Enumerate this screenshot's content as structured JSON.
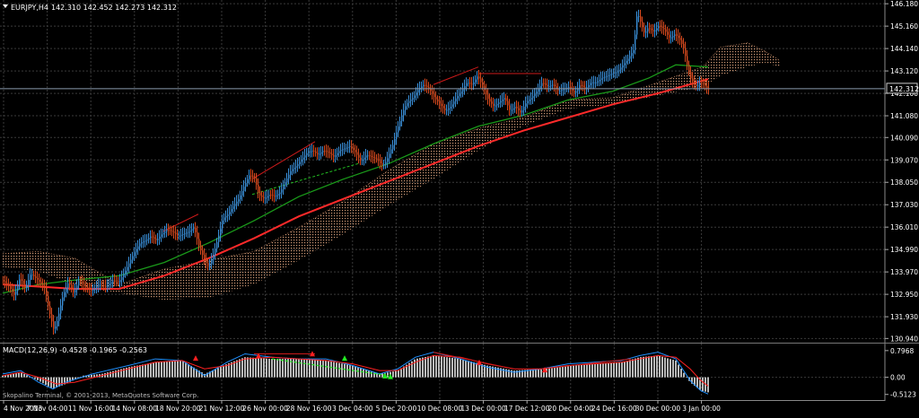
{
  "header": {
    "symbol_label": "EURJPY,H4",
    "ohlc_text": "142.310 142.452 142.273 142.312"
  },
  "copyright": "Skopalino Terminal, © 2001-2013, MetaQuotes Software Corp.",
  "chart_data": {
    "type": "candlestick",
    "symbol": "EURJPY",
    "timeframe": "H4",
    "ohlc": {
      "open": 142.31,
      "high": 142.452,
      "low": 142.273,
      "close": 142.312
    },
    "current_price_label": "142.312",
    "y_ticks": [
      "146.180",
      "145.160",
      "144.140",
      "143.120",
      "142.100",
      "141.080",
      "140.090",
      "139.070",
      "138.050",
      "137.030",
      "136.010",
      "134.990",
      "133.970",
      "132.950",
      "131.930",
      "130.940"
    ],
    "ylim": [
      130.75,
      146.35
    ],
    "x_ticks": [
      "4 Nov 2013",
      "7 Nov 04:00",
      "11 Nov 16:00",
      "14 Nov 08:00",
      "18 Nov 20:00",
      "21 Nov 12:00",
      "26 Nov 00:00",
      "28 Nov 16:00",
      "3 Dec 04:00",
      "5 Dec 20:00",
      "10 Dec 08:00",
      "13 Dec 00:00",
      "17 Dec 12:00",
      "20 Dec 04:00",
      "24 Dec 16:00",
      "30 Dec 00:00",
      "3 Jan 00:00"
    ],
    "price_path": [
      [
        0,
        133.6
      ],
      [
        8,
        133.3
      ],
      [
        14,
        132.9
      ],
      [
        20,
        133.7
      ],
      [
        26,
        133.2
      ],
      [
        32,
        133.9
      ],
      [
        40,
        133.6
      ],
      [
        48,
        133.2
      ],
      [
        52,
        132.3
      ],
      [
        55,
        131.8
      ],
      [
        58,
        131.3
      ],
      [
        62,
        131.8
      ],
      [
        68,
        132.9
      ],
      [
        74,
        133.5
      ],
      [
        80,
        133.0
      ],
      [
        86,
        133.6
      ],
      [
        92,
        133.3
      ],
      [
        100,
        133.1
      ],
      [
        108,
        133.4
      ],
      [
        116,
        133.3
      ],
      [
        124,
        133.6
      ],
      [
        130,
        133.5
      ],
      [
        136,
        133.9
      ],
      [
        142,
        134.4
      ],
      [
        148,
        134.9
      ],
      [
        154,
        135.3
      ],
      [
        160,
        135.4
      ],
      [
        166,
        135.6
      ],
      [
        172,
        135.4
      ],
      [
        178,
        135.7
      ],
      [
        184,
        135.9
      ],
      [
        190,
        135.8
      ],
      [
        196,
        135.6
      ],
      [
        202,
        135.7
      ],
      [
        208,
        135.8
      ],
      [
        214,
        136.0
      ],
      [
        220,
        135.1
      ],
      [
        226,
        134.5
      ],
      [
        230,
        134.2
      ],
      [
        236,
        134.8
      ],
      [
        242,
        135.7
      ],
      [
        246,
        136.4
      ],
      [
        252,
        136.6
      ],
      [
        258,
        137.0
      ],
      [
        264,
        137.3
      ],
      [
        270,
        137.9
      ],
      [
        276,
        138.4
      ],
      [
        282,
        138.2
      ],
      [
        286,
        137.5
      ],
      [
        292,
        137.3
      ],
      [
        298,
        137.5
      ],
      [
        304,
        137.4
      ],
      [
        310,
        137.6
      ],
      [
        316,
        138.1
      ],
      [
        322,
        138.6
      ],
      [
        328,
        138.8
      ],
      [
        334,
        139.1
      ],
      [
        340,
        139.4
      ],
      [
        346,
        139.5
      ],
      [
        352,
        139.3
      ],
      [
        358,
        139.5
      ],
      [
        364,
        139.4
      ],
      [
        370,
        139.2
      ],
      [
        376,
        139.5
      ],
      [
        382,
        139.6
      ],
      [
        388,
        139.7
      ],
      [
        394,
        139.4
      ],
      [
        400,
        139.0
      ],
      [
        406,
        139.3
      ],
      [
        412,
        139.2
      ],
      [
        418,
        139.1
      ],
      [
        424,
        138.8
      ],
      [
        428,
        139.0
      ],
      [
        432,
        139.4
      ],
      [
        436,
        139.8
      ],
      [
        440,
        140.4
      ],
      [
        444,
        140.9
      ],
      [
        448,
        141.4
      ],
      [
        452,
        141.7
      ],
      [
        458,
        141.9
      ],
      [
        464,
        142.3
      ],
      [
        470,
        142.5
      ],
      [
        476,
        142.3
      ],
      [
        482,
        141.9
      ],
      [
        488,
        141.6
      ],
      [
        494,
        141.3
      ],
      [
        500,
        141.5
      ],
      [
        506,
        141.9
      ],
      [
        512,
        142.2
      ],
      [
        518,
        142.6
      ],
      [
        524,
        142.5
      ],
      [
        530,
        142.9
      ],
      [
        536,
        142.4
      ],
      [
        542,
        141.8
      ],
      [
        548,
        141.5
      ],
      [
        554,
        141.7
      ],
      [
        560,
        141.9
      ],
      [
        566,
        141.3
      ],
      [
        572,
        141.5
      ],
      [
        578,
        141.2
      ],
      [
        584,
        141.7
      ],
      [
        590,
        141.9
      ],
      [
        596,
        142.2
      ],
      [
        602,
        142.6
      ],
      [
        608,
        142.4
      ],
      [
        614,
        142.5
      ],
      [
        620,
        142.2
      ],
      [
        626,
        142.3
      ],
      [
        632,
        142.4
      ],
      [
        638,
        142.1
      ],
      [
        644,
        142.5
      ],
      [
        650,
        142.3
      ],
      [
        656,
        142.6
      ],
      [
        662,
        142.6
      ],
      [
        668,
        142.8
      ],
      [
        674,
        142.9
      ],
      [
        680,
        143.0
      ],
      [
        686,
        143.1
      ],
      [
        692,
        143.4
      ],
      [
        698,
        143.7
      ],
      [
        704,
        144.1
      ],
      [
        706,
        145.0
      ],
      [
        708,
        145.8
      ],
      [
        712,
        145.3
      ],
      [
        716,
        144.8
      ],
      [
        720,
        145.1
      ],
      [
        726,
        144.9
      ],
      [
        732,
        145.2
      ],
      [
        738,
        145.0
      ],
      [
        744,
        144.6
      ],
      [
        750,
        144.8
      ],
      [
        756,
        144.5
      ],
      [
        760,
        144.1
      ],
      [
        764,
        143.3
      ],
      [
        768,
        142.7
      ],
      [
        774,
        142.4
      ],
      [
        778,
        142.6
      ],
      [
        782,
        142.5
      ],
      [
        786,
        142.31
      ]
    ],
    "ma_red": [
      [
        0,
        133.4
      ],
      [
        40,
        133.3
      ],
      [
        80,
        133.2
      ],
      [
        130,
        133.2
      ],
      [
        180,
        133.8
      ],
      [
        230,
        134.6
      ],
      [
        280,
        135.5
      ],
      [
        330,
        136.5
      ],
      [
        380,
        137.3
      ],
      [
        430,
        138.1
      ],
      [
        480,
        138.9
      ],
      [
        530,
        139.7
      ],
      [
        580,
        140.4
      ],
      [
        630,
        141.0
      ],
      [
        680,
        141.6
      ],
      [
        730,
        142.1
      ],
      [
        765,
        142.5
      ],
      [
        786,
        142.75
      ]
    ],
    "ma_green": [
      [
        0,
        133.0
      ],
      [
        40,
        133.4
      ],
      [
        80,
        133.6
      ],
      [
        130,
        133.8
      ],
      [
        180,
        134.4
      ],
      [
        230,
        135.3
      ],
      [
        280,
        136.3
      ],
      [
        330,
        137.4
      ],
      [
        380,
        138.2
      ],
      [
        430,
        138.9
      ],
      [
        480,
        139.8
      ],
      [
        530,
        140.6
      ],
      [
        580,
        141.1
      ],
      [
        630,
        141.8
      ],
      [
        680,
        142.2
      ],
      [
        720,
        142.8
      ],
      [
        750,
        143.4
      ],
      [
        786,
        143.3
      ]
    ],
    "cloud_upper": [
      [
        0,
        134.8
      ],
      [
        40,
        134.9
      ],
      [
        80,
        134.6
      ],
      [
        130,
        133.4
      ],
      [
        180,
        134.1
      ],
      [
        230,
        134.5
      ],
      [
        280,
        134.9
      ],
      [
        330,
        136.0
      ],
      [
        380,
        137.2
      ],
      [
        430,
        138.6
      ],
      [
        480,
        139.8
      ],
      [
        530,
        140.5
      ],
      [
        580,
        141.0
      ],
      [
        630,
        141.8
      ],
      [
        680,
        141.9
      ],
      [
        730,
        142.6
      ],
      [
        780,
        143.3
      ],
      [
        800,
        144.2
      ],
      [
        830,
        144.4
      ],
      [
        850,
        144.0
      ],
      [
        866,
        143.6
      ]
    ],
    "cloud_lower": [
      [
        0,
        134.2
      ],
      [
        40,
        134.0
      ],
      [
        80,
        133.4
      ],
      [
        130,
        133.0
      ],
      [
        180,
        132.7
      ],
      [
        230,
        132.8
      ],
      [
        280,
        133.4
      ],
      [
        330,
        134.5
      ],
      [
        380,
        135.7
      ],
      [
        430,
        137.0
      ],
      [
        480,
        138.2
      ],
      [
        530,
        139.5
      ],
      [
        580,
        140.6
      ],
      [
        630,
        141.4
      ],
      [
        680,
        141.6
      ],
      [
        730,
        142.0
      ],
      [
        780,
        142.4
      ],
      [
        800,
        142.9
      ],
      [
        830,
        143.3
      ],
      [
        850,
        143.5
      ],
      [
        866,
        143.3
      ]
    ],
    "trend_lines_red": [
      [
        [
          178,
          135.8
        ],
        [
          218,
          136.6
        ]
      ],
      [
        [
          278,
          138.2
        ],
        [
          348,
          139.9
        ]
      ],
      [
        [
          480,
          142.5
        ],
        [
          530,
          143.3
        ]
      ],
      [
        [
          530,
          143.0
        ],
        [
          600,
          143.0
        ]
      ]
    ],
    "trend_lines_green_dashed": [
      [
        [
          278,
          137.5
        ],
        [
          396,
          138.9
        ]
      ]
    ],
    "macd": {
      "label": "MACD(12,26,9) -0.4528 -0.1965 -0.2563",
      "params": [
        12,
        26,
        9
      ],
      "values": [
        -0.4528,
        -0.1965,
        -0.2563
      ],
      "y_ticks": [
        "0.7968",
        "0.00",
        "-0.5123"
      ],
      "ylim": [
        -0.6,
        0.9
      ],
      "histogram": [
        [
          0,
          0.05
        ],
        [
          20,
          0.15
        ],
        [
          40,
          -0.1
        ],
        [
          56,
          -0.35
        ],
        [
          70,
          -0.2
        ],
        [
          90,
          0.05
        ],
        [
          110,
          0.1
        ],
        [
          140,
          0.3
        ],
        [
          170,
          0.45
        ],
        [
          200,
          0.5
        ],
        [
          225,
          0.1
        ],
        [
          250,
          0.4
        ],
        [
          270,
          0.6
        ],
        [
          300,
          0.55
        ],
        [
          330,
          0.55
        ],
        [
          360,
          0.5
        ],
        [
          390,
          0.35
        ],
        [
          420,
          0.1
        ],
        [
          440,
          0.2
        ],
        [
          460,
          0.55
        ],
        [
          480,
          0.65
        ],
        [
          510,
          0.55
        ],
        [
          540,
          0.35
        ],
        [
          570,
          0.2
        ],
        [
          600,
          0.25
        ],
        [
          630,
          0.35
        ],
        [
          660,
          0.4
        ],
        [
          690,
          0.45
        ],
        [
          710,
          0.6
        ],
        [
          730,
          0.65
        ],
        [
          750,
          0.5
        ],
        [
          766,
          -0.15
        ],
        [
          778,
          -0.4
        ],
        [
          786,
          -0.45
        ]
      ],
      "line_blue": [
        [
          0,
          0.1
        ],
        [
          20,
          0.2
        ],
        [
          40,
          -0.15
        ],
        [
          56,
          -0.35
        ],
        [
          70,
          -0.15
        ],
        [
          100,
          0.1
        ],
        [
          140,
          0.35
        ],
        [
          170,
          0.55
        ],
        [
          200,
          0.5
        ],
        [
          225,
          0.05
        ],
        [
          250,
          0.45
        ],
        [
          270,
          0.7
        ],
        [
          300,
          0.6
        ],
        [
          330,
          0.55
        ],
        [
          360,
          0.55
        ],
        [
          390,
          0.35
        ],
        [
          420,
          0.1
        ],
        [
          440,
          0.25
        ],
        [
          460,
          0.6
        ],
        [
          480,
          0.75
        ],
        [
          510,
          0.55
        ],
        [
          540,
          0.3
        ],
        [
          570,
          0.15
        ],
        [
          600,
          0.25
        ],
        [
          630,
          0.4
        ],
        [
          660,
          0.45
        ],
        [
          690,
          0.5
        ],
        [
          710,
          0.65
        ],
        [
          730,
          0.75
        ],
        [
          750,
          0.55
        ],
        [
          766,
          -0.1
        ],
        [
          778,
          -0.4
        ],
        [
          786,
          -0.5
        ]
      ],
      "line_red": [
        [
          0,
          0.05
        ],
        [
          20,
          0.15
        ],
        [
          40,
          0.0
        ],
        [
          60,
          -0.2
        ],
        [
          80,
          -0.15
        ],
        [
          110,
          0.05
        ],
        [
          140,
          0.25
        ],
        [
          170,
          0.45
        ],
        [
          200,
          0.5
        ],
        [
          225,
          0.25
        ],
        [
          250,
          0.35
        ],
        [
          270,
          0.55
        ],
        [
          300,
          0.6
        ],
        [
          330,
          0.55
        ],
        [
          360,
          0.5
        ],
        [
          390,
          0.4
        ],
        [
          420,
          0.2
        ],
        [
          440,
          0.2
        ],
        [
          460,
          0.45
        ],
        [
          480,
          0.65
        ],
        [
          510,
          0.6
        ],
        [
          540,
          0.4
        ],
        [
          570,
          0.25
        ],
        [
          600,
          0.25
        ],
        [
          630,
          0.35
        ],
        [
          660,
          0.4
        ],
        [
          690,
          0.45
        ],
        [
          710,
          0.55
        ],
        [
          730,
          0.65
        ],
        [
          750,
          0.6
        ],
        [
          766,
          0.25
        ],
        [
          778,
          -0.1
        ],
        [
          786,
          -0.26
        ]
      ],
      "divergence_red": [
        [
          [
            280,
            0.7
          ],
          [
            348,
            0.7
          ]
        ],
        [
          [
            480,
            0.75
          ],
          [
            560,
            0.3
          ]
        ],
        [
          [
            600,
            0.25
          ],
          [
            700,
            0.55
          ]
        ]
      ],
      "divergence_green_dashed": [
        [
          [
            300,
            0.55
          ],
          [
            430,
            0.05
          ]
        ]
      ],
      "markers_red": [
        [
          215,
          0.55
        ],
        [
          285,
          0.62
        ],
        [
          345,
          0.68
        ],
        [
          531,
          0.42
        ],
        [
          604,
          0.2
        ]
      ],
      "markers_green": [
        [
          381,
          0.55
        ],
        [
          426,
          0.02
        ],
        [
          432,
          0.0
        ]
      ]
    }
  }
}
